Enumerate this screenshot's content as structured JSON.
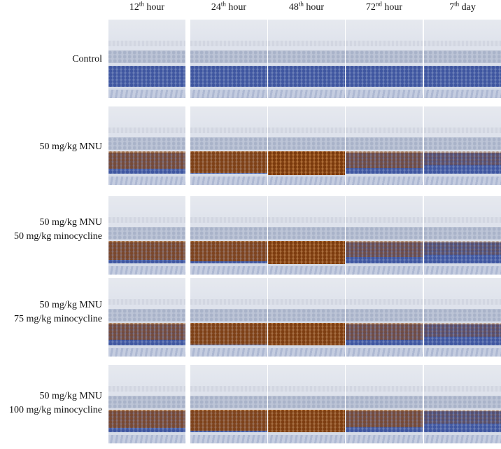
{
  "columns": [
    {
      "num": "12",
      "sup": "th",
      "unit": "hour"
    },
    {
      "num": "24",
      "sup": "th",
      "unit": "hour"
    },
    {
      "num": "48",
      "sup": "th",
      "unit": "hour"
    },
    {
      "num": "72",
      "sup": "nd",
      "unit": "hour"
    },
    {
      "num": "7",
      "sup": "th",
      "unit": "day"
    }
  ],
  "rows": [
    {
      "label_lines": [
        "Control"
      ],
      "stain_level": [
        0,
        0,
        0,
        0,
        0
      ]
    },
    {
      "label_lines": [
        "50 mg/kg MNU"
      ],
      "stain_level": [
        0.45,
        0.8,
        1.0,
        0.35,
        0.15
      ]
    },
    {
      "label_lines": [
        "50 mg/kg MNU",
        "50 mg/kg minocycline"
      ],
      "stain_level": [
        0.55,
        0.7,
        0.95,
        0.3,
        0.1
      ]
    },
    {
      "label_lines": [
        "50 mg/kg MNU",
        "75 mg/kg minocycline"
      ],
      "stain_level": [
        0.4,
        0.8,
        0.9,
        0.35,
        0.15
      ]
    },
    {
      "label_lines": [
        "50 mg/kg MNU",
        "100 mg/kg minocycline"
      ],
      "stain_level": [
        0.5,
        0.75,
        0.9,
        0.45,
        0.1
      ]
    }
  ],
  "colors": {
    "hematoxylin": "#3f56a0",
    "dab_stain": "#b8641e",
    "background": "#ffffff"
  }
}
